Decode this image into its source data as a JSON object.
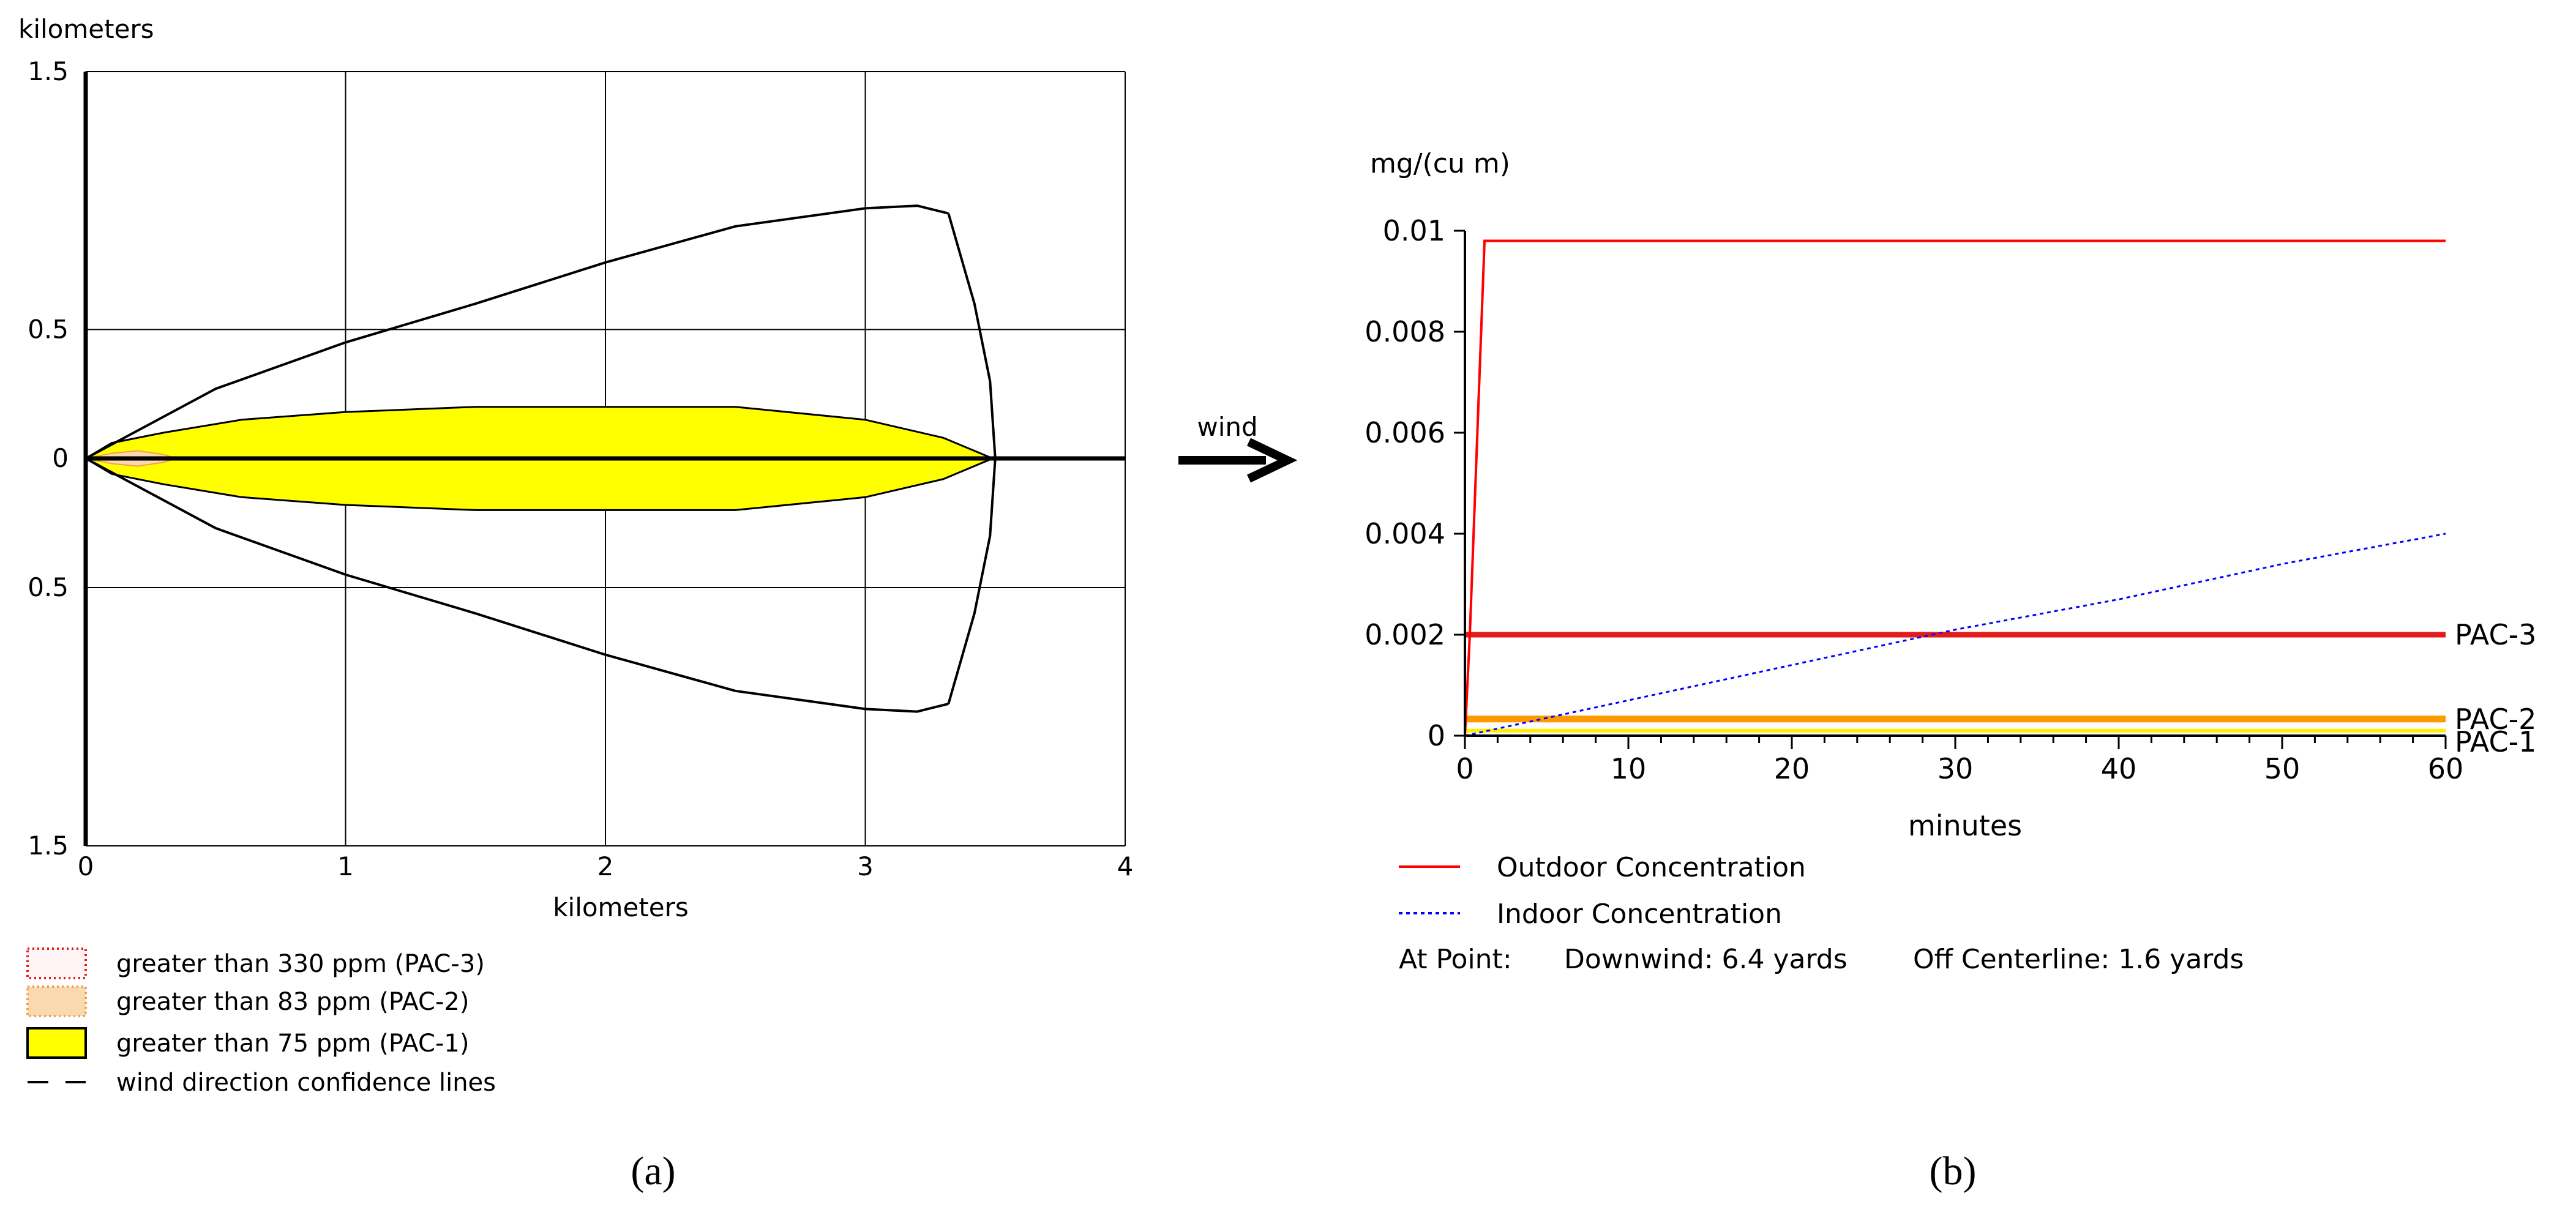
{
  "chart_data": [
    {
      "type": "area",
      "panel_label": "(a)",
      "xlabel": "kilometers",
      "ylabel": "kilometers",
      "xlim": [
        0,
        4
      ],
      "ylim": [
        -1.5,
        1.5
      ],
      "x_ticks": [
        0,
        1,
        2,
        3,
        4
      ],
      "x_tick_labels": [
        "0",
        "1",
        "2",
        "3",
        "4"
      ],
      "y_ticks": [
        1.5,
        0.5,
        0,
        -0.5,
        -1.5
      ],
      "y_tick_labels": [
        "1.5",
        "0.5",
        "0",
        "0.5",
        "1.5"
      ],
      "grid": true,
      "series": [
        {
          "name": "greater than 75 ppm (PAC-1)",
          "color": "#ffff00",
          "half_width": [
            [
              0,
              0
            ],
            [
              0.1,
              0.06
            ],
            [
              0.3,
              0.1
            ],
            [
              0.6,
              0.15
            ],
            [
              1.0,
              0.18
            ],
            [
              1.5,
              0.2
            ],
            [
              2.0,
              0.2
            ],
            [
              2.5,
              0.2
            ],
            [
              3.0,
              0.15
            ],
            [
              3.3,
              0.08
            ],
            [
              3.49,
              0
            ]
          ]
        },
        {
          "name": "greater than 83 ppm (PAC-2)",
          "color": "#f5b26b",
          "half_width": [
            [
              0,
              0
            ],
            [
              0.1,
              0.02
            ],
            [
              0.2,
              0.03
            ],
            [
              0.3,
              0.015
            ],
            [
              0.35,
              0
            ]
          ]
        },
        {
          "name": "greater than 330 ppm (PAC-3)",
          "color": "#e63a3a",
          "half_width": [
            [
              0,
              0
            ],
            [
              0.06,
              0.005
            ],
            [
              0.12,
              0
            ]
          ]
        }
      ],
      "confidence_lines": {
        "name": "wind direction confidence lines",
        "upper": [
          [
            0,
            0
          ],
          [
            0.5,
            0.27
          ],
          [
            1.0,
            0.45
          ],
          [
            1.5,
            0.6
          ],
          [
            2.0,
            0.76
          ],
          [
            2.5,
            0.9
          ],
          [
            3.0,
            0.97
          ],
          [
            3.2,
            0.98
          ],
          [
            3.32,
            0.95
          ]
        ],
        "lower": [
          [
            0,
            0
          ],
          [
            0.5,
            -0.27
          ],
          [
            1.0,
            -0.45
          ],
          [
            1.5,
            -0.6
          ],
          [
            2.0,
            -0.76
          ],
          [
            2.5,
            -0.9
          ],
          [
            3.0,
            -0.97
          ],
          [
            3.2,
            -0.98
          ],
          [
            3.32,
            -0.95
          ]
        ],
        "arc": [
          [
            3.32,
            0.95
          ],
          [
            3.42,
            0.6
          ],
          [
            3.48,
            0.3
          ],
          [
            3.5,
            0
          ],
          [
            3.48,
            -0.3
          ],
          [
            3.42,
            -0.6
          ],
          [
            3.32,
            -0.95
          ]
        ]
      },
      "centerline": [
        [
          0,
          0
        ],
        [
          4,
          0
        ]
      ],
      "legend": [
        "greater than 330 ppm (PAC-3)",
        "greater than 83 ppm (PAC-2)",
        "greater than 75 ppm (PAC-1)",
        "wind direction confidence lines"
      ]
    },
    {
      "type": "line",
      "panel_label": "(b)",
      "xlabel": "minutes",
      "ylabel": "mg/(cu m)",
      "xlim": [
        0,
        60
      ],
      "ylim": [
        0,
        0.01
      ],
      "x_ticks": [
        0,
        10,
        20,
        30,
        40,
        50,
        60
      ],
      "x_tick_labels": [
        "0",
        "10",
        "20",
        "30",
        "40",
        "50",
        "60"
      ],
      "y_ticks": [
        0,
        0.002,
        0.004,
        0.006,
        0.008,
        0.01
      ],
      "y_tick_labels": [
        "0",
        "0.002",
        "0.004",
        "0.006",
        "0.008",
        "0.01"
      ],
      "series": [
        {
          "name": "Outdoor Concentration",
          "color": "#ff0000",
          "style": "solid",
          "x": [
            0,
            0.3,
            1.2,
            60
          ],
          "y": [
            0,
            0.002,
            0.0098,
            0.0098
          ]
        },
        {
          "name": "Indoor Concentration",
          "color": "#0000ff",
          "style": "dotted",
          "x": [
            0,
            10,
            20,
            30,
            40,
            50,
            60
          ],
          "y": [
            0,
            0.0007,
            0.0014,
            0.0021,
            0.0027,
            0.0034,
            0.004
          ]
        }
      ],
      "thresholds": [
        {
          "label": "PAC-3",
          "value": 0.002,
          "color": "#e31b1b"
        },
        {
          "label": "PAC-2",
          "value": 0.00033,
          "color": "#ff9900"
        },
        {
          "label": "PAC-1",
          "value": 0.0001,
          "color": "#ffee00"
        }
      ],
      "legend": [
        "Outdoor Concentration",
        "Indoor Concentration"
      ],
      "point_info": {
        "prefix": "At Point:",
        "downwind": "Downwind: 6.4 yards",
        "off_centerline": "Off Centerline: 1.6 yards"
      }
    }
  ],
  "wind_label": "wind"
}
